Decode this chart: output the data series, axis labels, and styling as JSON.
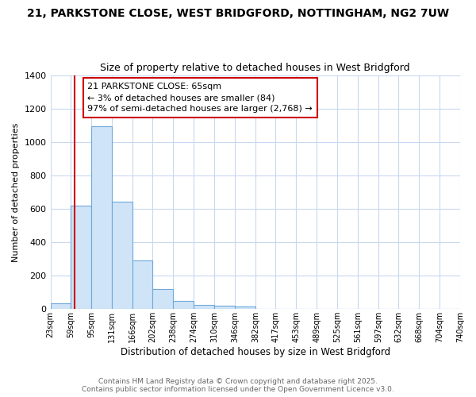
{
  "title1": "21, PARKSTONE CLOSE, WEST BRIDGFORD, NOTTINGHAM, NG2 7UW",
  "title2": "Size of property relative to detached houses in West Bridgford",
  "xlabel": "Distribution of detached houses by size in West Bridgford",
  "ylabel": "Number of detached properties",
  "bin_edges": [
    23,
    59,
    95,
    131,
    166,
    202,
    238,
    274,
    310,
    346,
    382,
    417,
    453,
    489,
    525,
    561,
    597,
    632,
    668,
    704,
    740
  ],
  "bar_heights": [
    35,
    620,
    1095,
    640,
    290,
    120,
    50,
    25,
    18,
    15,
    0,
    0,
    0,
    0,
    0,
    0,
    0,
    0,
    0,
    0
  ],
  "bar_color": "#d0e4f7",
  "bar_edge_color": "#6fa8dc",
  "property_line_x": 65,
  "property_line_color": "#cc0000",
  "annotation_title": "21 PARKSTONE CLOSE: 65sqm",
  "annotation_line1": "← 3% of detached houses are smaller (84)",
  "annotation_line2": "97% of semi-detached houses are larger (2,768) →",
  "annotation_box_color": "white",
  "annotation_box_edge": "#cc0000",
  "ylim": [
    0,
    1400
  ],
  "xlim": [
    23,
    740
  ],
  "tick_labels": [
    "23sqm",
    "59sqm",
    "95sqm",
    "131sqm",
    "166sqm",
    "202sqm",
    "238sqm",
    "274sqm",
    "310sqm",
    "346sqm",
    "382sqm",
    "417sqm",
    "453sqm",
    "489sqm",
    "525sqm",
    "561sqm",
    "597sqm",
    "632sqm",
    "668sqm",
    "704sqm",
    "740sqm"
  ],
  "footer1": "Contains HM Land Registry data © Crown copyright and database right 2025.",
  "footer2": "Contains public sector information licensed under the Open Government Licence v3.0.",
  "background_color": "#ffffff",
  "grid_color": "#c8d8f0"
}
